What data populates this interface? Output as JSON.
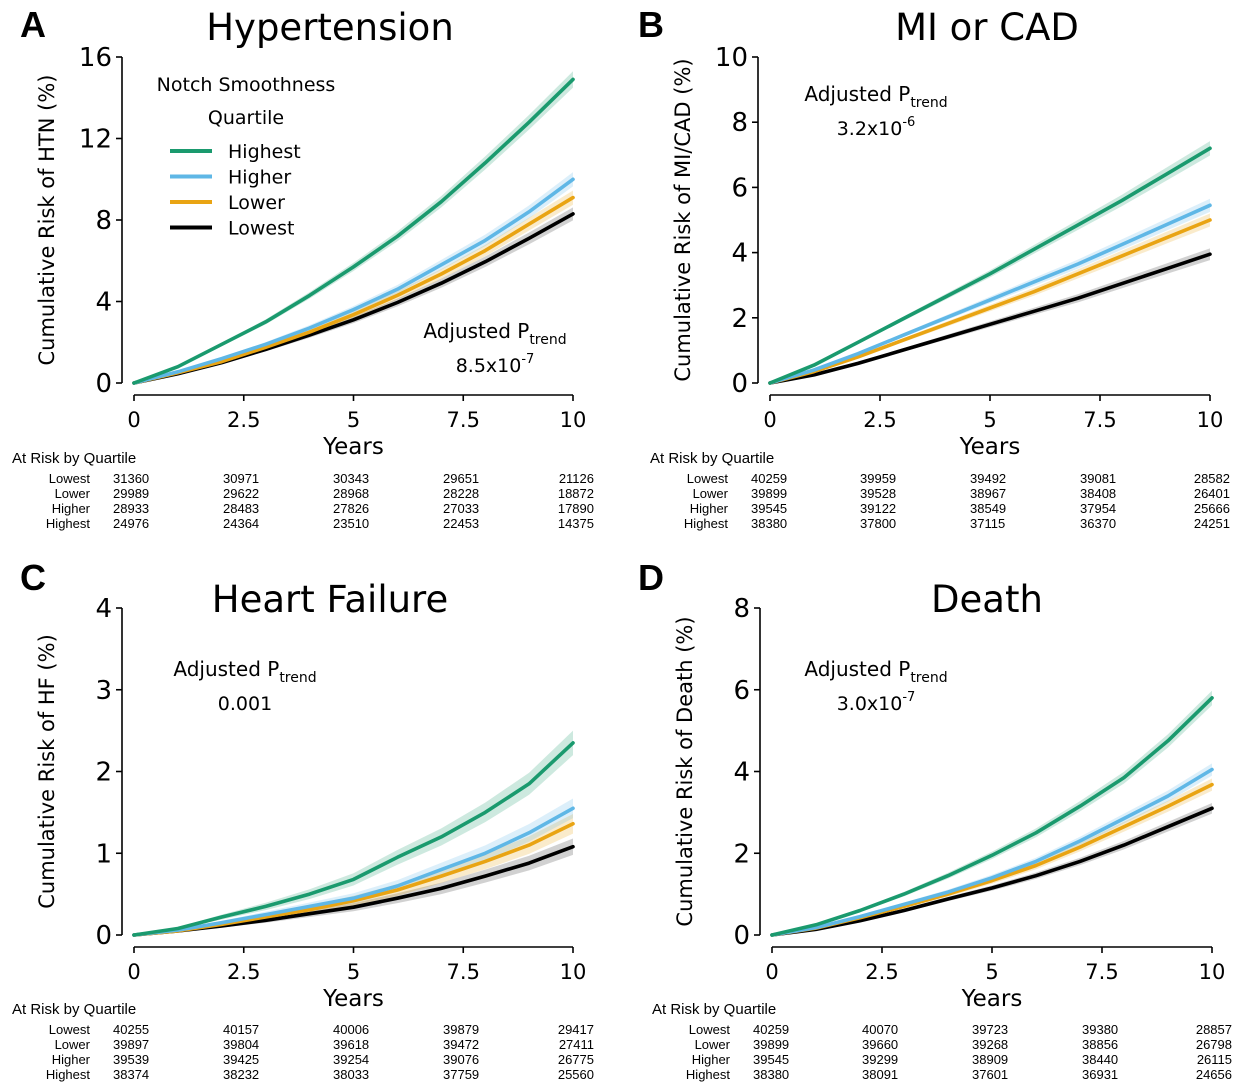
{
  "colors": {
    "Highest": "#1a9a6e",
    "Higher": "#5fb7e6",
    "Lower": "#e9a413",
    "Lowest": "#000000"
  },
  "legend": {
    "title_line1": "Notch Smoothness",
    "title_line2": "Quartile",
    "items": [
      "Highest",
      "Higher",
      "Lower",
      "Lowest"
    ]
  },
  "risk_row_labels": [
    "Lowest",
    "Lower",
    "Higher",
    "Highest"
  ],
  "chart_data": [
    {
      "type": "line",
      "letter": "A",
      "title": "Hypertension",
      "xlabel": "Years",
      "ylabel": "Cumulative Risk of HTN (%)",
      "xlim": [
        0,
        10
      ],
      "ylim": [
        0,
        16
      ],
      "xticks": [
        "0",
        "2.5",
        "5",
        "7.5",
        "10"
      ],
      "yticks": [
        "0",
        "4",
        "8",
        "12",
        "16"
      ],
      "grid": false,
      "legend_position": "top-left",
      "ptrend_label": "Adjusted P",
      "ptrend_sub": "trend",
      "ptrend_value_base": "8.5x10",
      "ptrend_value_exp": "-7",
      "x": [
        0,
        1,
        2,
        3,
        4,
        5,
        6,
        7,
        8,
        9,
        10
      ],
      "series": [
        {
          "name": "Highest",
          "values": [
            0,
            0.8,
            1.9,
            3.0,
            4.3,
            5.7,
            7.2,
            8.9,
            10.8,
            12.8,
            14.9
          ]
        },
        {
          "name": "Higher",
          "values": [
            0,
            0.55,
            1.2,
            1.9,
            2.7,
            3.6,
            4.6,
            5.8,
            7.0,
            8.4,
            10.0
          ]
        },
        {
          "name": "Lower",
          "values": [
            0,
            0.5,
            1.05,
            1.75,
            2.5,
            3.35,
            4.3,
            5.35,
            6.5,
            7.8,
            9.1
          ]
        },
        {
          "name": "Lowest",
          "values": [
            0,
            0.45,
            1.0,
            1.65,
            2.35,
            3.1,
            3.95,
            4.9,
            5.95,
            7.1,
            8.3
          ]
        }
      ],
      "ribbon_half_width": [
        0.4,
        0.35,
        0.35,
        0.32
      ],
      "at_risk_title": "At Risk by Quartile",
      "at_risk": [
        [
          "31360",
          "30971",
          "30343",
          "29651",
          "21126"
        ],
        [
          "29989",
          "29622",
          "28968",
          "28228",
          "18872"
        ],
        [
          "28933",
          "28483",
          "27826",
          "27033",
          "17890"
        ],
        [
          "24976",
          "24364",
          "23510",
          "22453",
          "14375"
        ]
      ]
    },
    {
      "type": "line",
      "letter": "B",
      "title": "MI or CAD",
      "xlabel": "Years",
      "ylabel": "Cumulative Risk of MI/CAD (%)",
      "xlim": [
        0,
        10
      ],
      "ylim": [
        0,
        10
      ],
      "xticks": [
        "0",
        "2.5",
        "5",
        "7.5",
        "10"
      ],
      "yticks": [
        "0",
        "2",
        "4",
        "6",
        "8",
        "10"
      ],
      "grid": false,
      "ptrend_label": "Adjusted P",
      "ptrend_sub": "trend",
      "ptrend_value_base": "3.2x10",
      "ptrend_value_exp": "-6",
      "x": [
        0,
        1,
        2,
        3,
        4,
        5,
        6,
        7,
        8,
        9,
        10
      ],
      "series": [
        {
          "name": "Highest",
          "values": [
            0,
            0.55,
            1.25,
            1.95,
            2.65,
            3.35,
            4.1,
            4.85,
            5.6,
            6.4,
            7.2
          ]
        },
        {
          "name": "Higher",
          "values": [
            0,
            0.4,
            0.9,
            1.45,
            2.0,
            2.55,
            3.1,
            3.65,
            4.25,
            4.85,
            5.45
          ]
        },
        {
          "name": "Lower",
          "values": [
            0,
            0.35,
            0.8,
            1.3,
            1.8,
            2.3,
            2.8,
            3.35,
            3.9,
            4.45,
            5.0
          ]
        },
        {
          "name": "Lowest",
          "values": [
            0,
            0.25,
            0.6,
            1.0,
            1.4,
            1.8,
            2.2,
            2.6,
            3.05,
            3.5,
            3.95
          ]
        }
      ],
      "ribbon_half_width": [
        0.22,
        0.2,
        0.2,
        0.18
      ],
      "at_risk_title": "At Risk by Quartile",
      "at_risk": [
        [
          "40259",
          "39959",
          "39492",
          "39081",
          "28582"
        ],
        [
          "39899",
          "39528",
          "38967",
          "38408",
          "26401"
        ],
        [
          "39545",
          "39122",
          "38549",
          "37954",
          "25666"
        ],
        [
          "38380",
          "37800",
          "37115",
          "36370",
          "24251"
        ]
      ]
    },
    {
      "type": "line",
      "letter": "C",
      "title": "Heart Failure",
      "xlabel": "Years",
      "ylabel": "Cumulative Risk of HF (%)",
      "xlim": [
        0,
        10
      ],
      "ylim": [
        0,
        4
      ],
      "xticks": [
        "0",
        "2.5",
        "5",
        "7.5",
        "10"
      ],
      "yticks": [
        "0",
        "1",
        "2",
        "3",
        "4"
      ],
      "grid": false,
      "ptrend_label": "Adjusted P",
      "ptrend_sub": "trend",
      "ptrend_value_base": "0.001",
      "ptrend_value_exp": "",
      "x": [
        0,
        1,
        2,
        3,
        4,
        5,
        6,
        7,
        8,
        9,
        10
      ],
      "series": [
        {
          "name": "Highest",
          "values": [
            0,
            0.08,
            0.22,
            0.35,
            0.5,
            0.68,
            0.95,
            1.2,
            1.5,
            1.85,
            2.35
          ]
        },
        {
          "name": "Higher",
          "values": [
            0,
            0.06,
            0.15,
            0.25,
            0.35,
            0.45,
            0.6,
            0.8,
            1.0,
            1.25,
            1.55
          ]
        },
        {
          "name": "Lower",
          "values": [
            0,
            0.05,
            0.13,
            0.22,
            0.31,
            0.42,
            0.55,
            0.72,
            0.9,
            1.1,
            1.36
          ]
        },
        {
          "name": "Lowest",
          "values": [
            0,
            0.05,
            0.11,
            0.18,
            0.26,
            0.34,
            0.45,
            0.57,
            0.72,
            0.88,
            1.08
          ]
        }
      ],
      "ribbon_half_width": [
        0.15,
        0.12,
        0.12,
        0.1
      ],
      "at_risk_title": "At Risk by Quartile",
      "at_risk": [
        [
          "40255",
          "40157",
          "40006",
          "39879",
          "29417"
        ],
        [
          "39897",
          "39804",
          "39618",
          "39472",
          "27411"
        ],
        [
          "39539",
          "39425",
          "39254",
          "39076",
          "26775"
        ],
        [
          "38374",
          "38232",
          "38033",
          "37759",
          "25560"
        ]
      ]
    },
    {
      "type": "line",
      "letter": "D",
      "title": "Death",
      "xlabel": "Years",
      "ylabel": "Cumulative Risk of Death (%)",
      "xlim": [
        0,
        10
      ],
      "ylim": [
        0,
        8
      ],
      "xticks": [
        "0",
        "2.5",
        "5",
        "7.5",
        "10"
      ],
      "yticks": [
        "0",
        "2",
        "4",
        "6",
        "8"
      ],
      "grid": false,
      "ptrend_label": "Adjusted P",
      "ptrend_sub": "trend",
      "ptrend_value_base": "3.0x10",
      "ptrend_value_exp": "-7",
      "x": [
        0,
        1,
        2,
        3,
        4,
        5,
        6,
        7,
        8,
        9,
        10
      ],
      "series": [
        {
          "name": "Highest",
          "values": [
            0,
            0.25,
            0.6,
            1.0,
            1.45,
            1.95,
            2.5,
            3.15,
            3.85,
            4.75,
            5.8
          ]
        },
        {
          "name": "Higher",
          "values": [
            0,
            0.18,
            0.45,
            0.75,
            1.05,
            1.4,
            1.8,
            2.3,
            2.85,
            3.4,
            4.05
          ]
        },
        {
          "name": "Lower",
          "values": [
            0,
            0.17,
            0.42,
            0.7,
            1.0,
            1.33,
            1.7,
            2.15,
            2.65,
            3.15,
            3.68
          ]
        },
        {
          "name": "Lowest",
          "values": [
            0,
            0.14,
            0.35,
            0.6,
            0.88,
            1.15,
            1.45,
            1.8,
            2.2,
            2.65,
            3.1
          ]
        }
      ],
      "ribbon_half_width": [
        0.18,
        0.15,
        0.15,
        0.13
      ],
      "at_risk_title": "At Risk by Quartile",
      "at_risk": [
        [
          "40259",
          "40070",
          "39723",
          "39380",
          "28857"
        ],
        [
          "39899",
          "39660",
          "39268",
          "38856",
          "26798"
        ],
        [
          "39545",
          "39299",
          "38909",
          "38440",
          "26115"
        ],
        [
          "38380",
          "38091",
          "37601",
          "36931",
          "24656"
        ]
      ]
    }
  ]
}
